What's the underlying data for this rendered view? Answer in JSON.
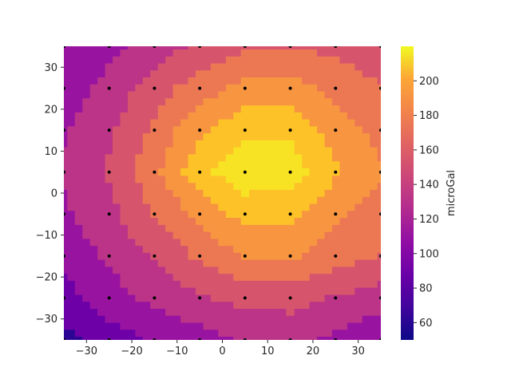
{
  "chart_data": {
    "type": "contour",
    "title": "",
    "xlabel": "",
    "ylabel": "",
    "xlim": [
      -35,
      35
    ],
    "ylim": [
      -35,
      35
    ],
    "grid": false,
    "x_ticks": [
      -30,
      -20,
      -10,
      0,
      10,
      20,
      30
    ],
    "y_ticks": [
      -30,
      -20,
      -10,
      0,
      10,
      20,
      30
    ],
    "colorbar": {
      "label": "microGal",
      "range": [
        50,
        220
      ],
      "ticks": [
        60,
        80,
        100,
        120,
        140,
        160,
        180,
        200
      ],
      "colormap": "plasma"
    },
    "levels": [
      50,
      70,
      90,
      110,
      130,
      150,
      170,
      190,
      210
    ],
    "level_colors": [
      "#2c0594",
      "#6e00a8",
      "#9814a0",
      "#bb3488",
      "#d6556d",
      "#ec7853",
      "#f89540",
      "#fcc228",
      "#f8e224"
    ],
    "grid_x": [
      -35,
      -25,
      -15,
      -5,
      5,
      15,
      25,
      35
    ],
    "grid_y": [
      35,
      25,
      15,
      5,
      -5,
      -15,
      -25,
      -35
    ],
    "z": [
      [
        94,
        104,
        118,
        134,
        146,
        148,
        144,
        138
      ],
      [
        98,
        116,
        140,
        160,
        176,
        178,
        164,
        150
      ],
      [
        108,
        126,
        154,
        186,
        206,
        206,
        180,
        164
      ],
      [
        112,
        132,
        164,
        204,
        222,
        222,
        192,
        172
      ],
      [
        106,
        124,
        150,
        174,
        198,
        196,
        172,
        162
      ],
      [
        96,
        114,
        132,
        154,
        170,
        172,
        160,
        148
      ],
      [
        82,
        100,
        116,
        126,
        138,
        138,
        128,
        120
      ],
      [
        64,
        80,
        92,
        100,
        112,
        114,
        106,
        92
      ]
    ],
    "samples": {
      "x": [
        -35,
        -25,
        -15,
        -5,
        5,
        15,
        25,
        35
      ],
      "y": [
        35,
        25,
        15,
        5,
        -5,
        -15,
        -25,
        -35
      ]
    }
  }
}
